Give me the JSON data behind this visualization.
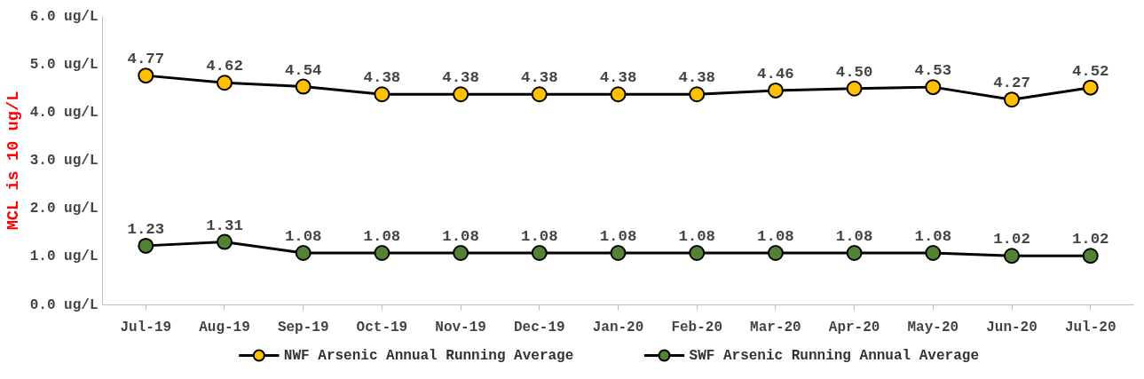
{
  "chart_data": {
    "type": "line",
    "ylabel": "MCL is 10 ug/L",
    "categories": [
      "Jul-19",
      "Aug-19",
      "Sep-19",
      "Oct-19",
      "Nov-19",
      "Dec-19",
      "Jan-20",
      "Feb-20",
      "Mar-20",
      "Apr-20",
      "May-20",
      "Jun-20",
      "Jul-20"
    ],
    "series": [
      {
        "name": "NWF Arsenic Annual Running Average",
        "color": "#ffc000",
        "values": [
          4.77,
          4.62,
          4.54,
          4.38,
          4.38,
          4.38,
          4.38,
          4.38,
          4.46,
          4.5,
          4.53,
          4.27,
          4.52
        ],
        "value_labels": [
          "4.77",
          "4.62",
          "4.54",
          "4.38",
          "4.38",
          "4.38",
          "4.38",
          "4.38",
          "4.46",
          "4.50",
          "4.53",
          "4.27",
          "4.52"
        ]
      },
      {
        "name": "SWF Arsenic Running Annual Average",
        "color": "#548235",
        "values": [
          1.23,
          1.31,
          1.08,
          1.08,
          1.08,
          1.08,
          1.08,
          1.08,
          1.08,
          1.08,
          1.08,
          1.02,
          1.02
        ],
        "value_labels": [
          "1.23",
          "1.31",
          "1.08",
          "1.08",
          "1.08",
          "1.08",
          "1.08",
          "1.08",
          "1.08",
          "1.08",
          "1.08",
          "1.02",
          "1.02"
        ]
      }
    ],
    "ylim": [
      0,
      6
    ],
    "yticks": [
      {
        "value": 0,
        "label": "0.0 ug/L"
      },
      {
        "value": 1,
        "label": "1.0 ug/L"
      },
      {
        "value": 2,
        "label": "2.0 ug/L"
      },
      {
        "value": 3,
        "label": "3.0 ug/L"
      },
      {
        "value": 4,
        "label": "4.0 ug/L"
      },
      {
        "value": 5,
        "label": "5.0 ug/L"
      },
      {
        "value": 6,
        "label": "6.0 ug/L"
      }
    ],
    "grid": false,
    "legend": "bottom",
    "marker": "circle",
    "line_style": "solid"
  }
}
